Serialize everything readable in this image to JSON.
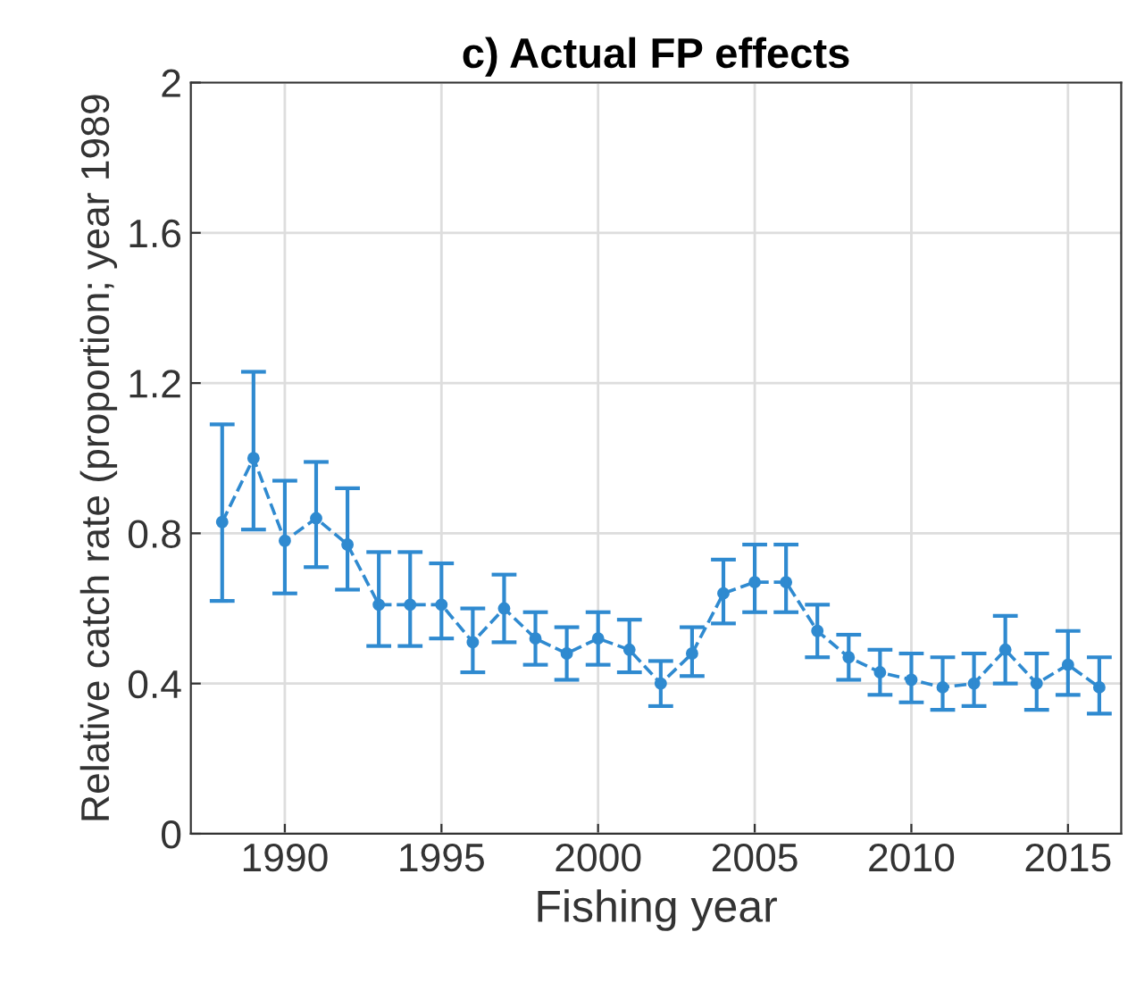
{
  "chart_data": {
    "type": "line",
    "title": "c) Actual FP effects",
    "xlabel": "Fishing year",
    "ylabel": "Relative catch rate (proportion; year 1989",
    "x": [
      1988,
      1989,
      1990,
      1991,
      1992,
      1993,
      1994,
      1995,
      1996,
      1997,
      1998,
      1999,
      2000,
      2001,
      2002,
      2003,
      2004,
      2005,
      2006,
      2007,
      2008,
      2009,
      2010,
      2011,
      2012,
      2013,
      2014,
      2015,
      2016
    ],
    "series": [
      {
        "color": "#2f8ad0",
        "values": [
          0.83,
          1.0,
          0.78,
          0.84,
          0.77,
          0.61,
          0.61,
          0.61,
          0.51,
          0.6,
          0.52,
          0.48,
          0.52,
          0.49,
          0.4,
          0.48,
          0.64,
          0.67,
          0.67,
          0.54,
          0.47,
          0.43,
          0.41,
          0.39,
          0.4,
          0.49,
          0.4,
          0.45,
          0.39
        ],
        "errors": [
          [
            0.62,
            1.09
          ],
          [
            0.81,
            1.23
          ],
          [
            0.64,
            0.94
          ],
          [
            0.71,
            0.99
          ],
          [
            0.65,
            0.92
          ],
          [
            0.5,
            0.75
          ],
          [
            0.5,
            0.75
          ],
          [
            0.52,
            0.72
          ],
          [
            0.43,
            0.6
          ],
          [
            0.51,
            0.69
          ],
          [
            0.45,
            0.59
          ],
          [
            0.41,
            0.55
          ],
          [
            0.45,
            0.59
          ],
          [
            0.43,
            0.57
          ],
          [
            0.34,
            0.46
          ],
          [
            0.42,
            0.55
          ],
          [
            0.56,
            0.73
          ],
          [
            0.59,
            0.77
          ],
          [
            0.59,
            0.77
          ],
          [
            0.47,
            0.61
          ],
          [
            0.41,
            0.53
          ],
          [
            0.37,
            0.49
          ],
          [
            0.35,
            0.48
          ],
          [
            0.33,
            0.47
          ],
          [
            0.34,
            0.48
          ],
          [
            0.4,
            0.58
          ],
          [
            0.33,
            0.48
          ],
          [
            0.37,
            0.54
          ],
          [
            0.32,
            0.47
          ]
        ]
      }
    ],
    "xlim": [
      1987,
      2016.7
    ],
    "xticks": [
      1990,
      1995,
      2000,
      2005,
      2010,
      2015
    ],
    "ylim": [
      0,
      2
    ],
    "yticks": [
      0,
      0.4,
      0.8,
      1.2,
      1.6,
      2
    ],
    "grid": true,
    "marker": "circle",
    "line_style": "dashed",
    "legend": false
  }
}
